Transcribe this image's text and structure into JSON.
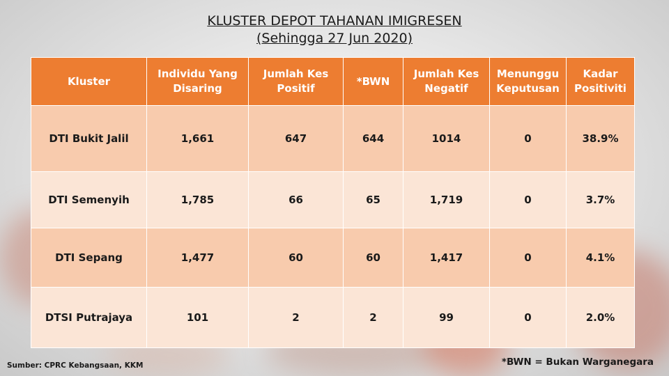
{
  "title": {
    "line1": "KLUSTER DEPOT TAHANAN IMIGRESEN",
    "line2": "(Sehingga 27 Jun 2020)"
  },
  "table": {
    "headers": [
      "Kluster",
      "Individu Yang Disaring",
      "Jumlah Kes Positif",
      "*BWN",
      "Jumlah Kes Negatif",
      "Menunggu Keputusan",
      "Kadar Positiviti"
    ],
    "rows": [
      [
        "DTI Bukit Jalil",
        "1,661",
        "647",
        "644",
        "1014",
        "0",
        "38.9%"
      ],
      [
        "DTI Semenyih",
        "1,785",
        "66",
        "65",
        "1,719",
        "0",
        "3.7%"
      ],
      [
        "DTI Sepang",
        "1,477",
        "60",
        "60",
        "1,417",
        "0",
        "4.1%"
      ],
      [
        "DTSI Putrajaya",
        "101",
        "2",
        "2",
        "99",
        "0",
        "2.0%"
      ]
    ]
  },
  "footnote": "*BWN = Bukan Warganegara",
  "source": "Sumber: CPRC Kebangsaan, KKM",
  "colors": {
    "header": "#ed7d31",
    "row_dark": "#f8cbad",
    "row_light": "#fbe5d6"
  }
}
